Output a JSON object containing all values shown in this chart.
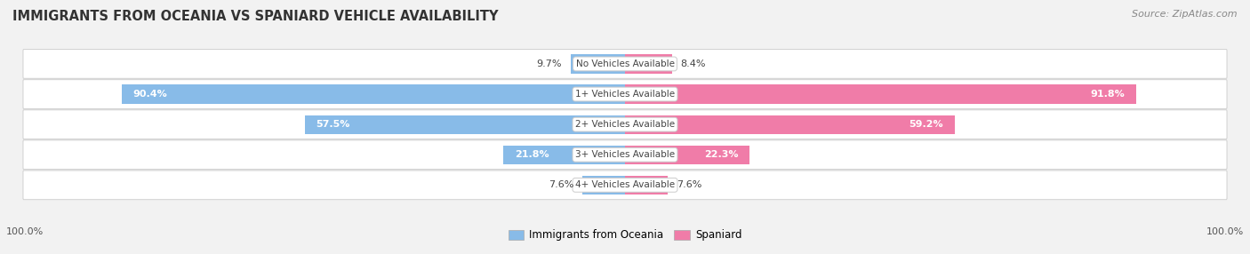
{
  "title": "IMMIGRANTS FROM OCEANIA VS SPANIARD VEHICLE AVAILABILITY",
  "source": "Source: ZipAtlas.com",
  "categories": [
    "No Vehicles Available",
    "1+ Vehicles Available",
    "2+ Vehicles Available",
    "3+ Vehicles Available",
    "4+ Vehicles Available"
  ],
  "oceania_values": [
    9.7,
    90.4,
    57.5,
    21.8,
    7.6
  ],
  "spaniard_values": [
    8.4,
    91.8,
    59.2,
    22.3,
    7.6
  ],
  "oceania_color": "#88bbe8",
  "spaniard_color": "#f07ca8",
  "oceania_color_light": "#aecde8",
  "spaniard_color_light": "#f4a8c8",
  "bar_height": 0.62,
  "background_color": "#f2f2f2",
  "title_color": "#333333",
  "max_value": 100.0,
  "legend_oceania": "Immigrants from Oceania",
  "legend_spaniard": "Spaniard",
  "bottom_label": "100.0%"
}
